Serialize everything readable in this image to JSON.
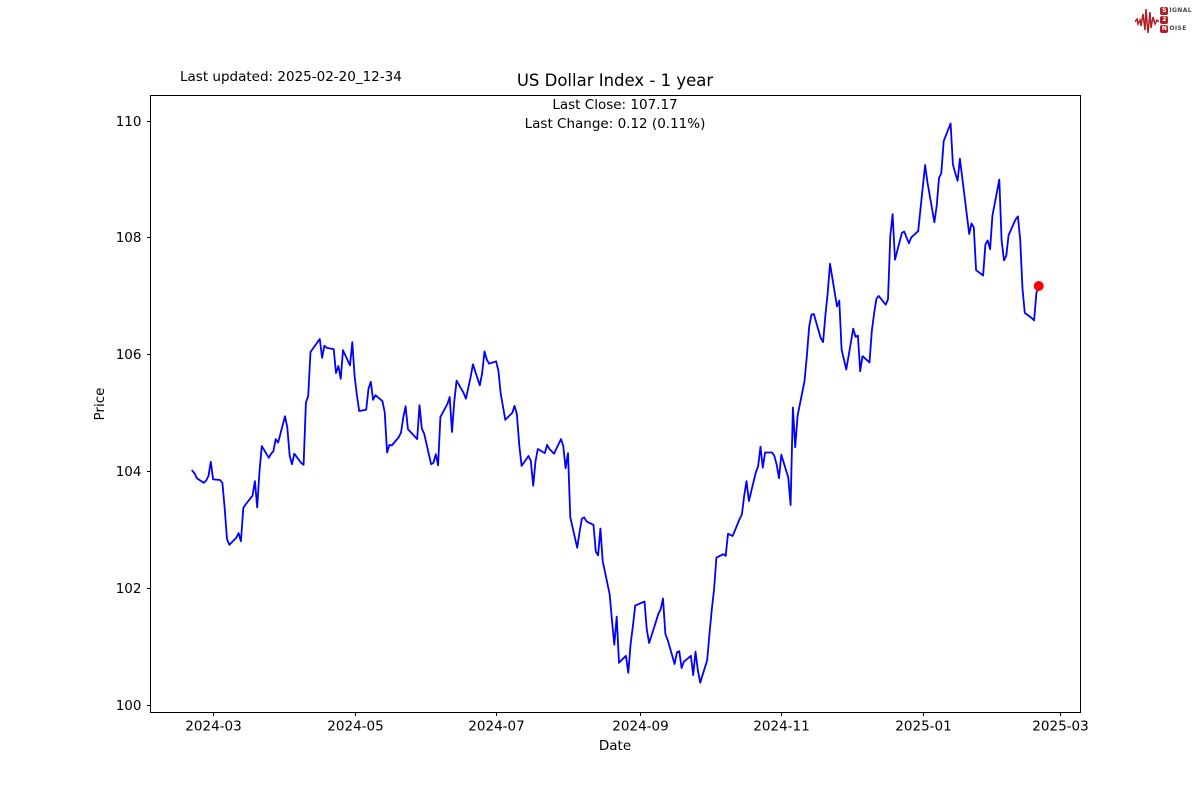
{
  "header": {
    "last_updated": "Last updated: 2025-02-20_12-34"
  },
  "logo": {
    "word1_initial": "S",
    "word1_rest": "IGNAL",
    "word2": "2",
    "word3_initial": "N",
    "word3_rest": "OISE",
    "accent_color": "#b01f24",
    "text_color": "#4a4a4a"
  },
  "chart_data": {
    "type": "line",
    "title": "US Dollar Index - 1 year",
    "annotations": [
      "Last Close: 107.17",
      "Last Change: 0.12 (0.11%)"
    ],
    "xlabel": "Date",
    "ylabel": "Price",
    "line_color": "#0000ff",
    "marker_color": "#ff0000",
    "axis_color": "#000000",
    "grid": false,
    "ylim": [
      99.87,
      110.43
    ],
    "xlim": [
      "2024-02-03",
      "2025-03-10"
    ],
    "y_ticks": [
      100,
      102,
      104,
      106,
      108,
      110
    ],
    "x_ticks": [
      {
        "label": "2024-03",
        "date": "2024-03-01"
      },
      {
        "label": "2024-05",
        "date": "2024-05-01"
      },
      {
        "label": "2024-07",
        "date": "2024-07-01"
      },
      {
        "label": "2024-09",
        "date": "2024-09-01"
      },
      {
        "label": "2024-11",
        "date": "2024-11-01"
      },
      {
        "label": "2025-01",
        "date": "2025-01-01"
      },
      {
        "label": "2025-03",
        "date": "2025-03-01"
      }
    ],
    "last_point": {
      "date": "2025-02-20",
      "value": 107.17
    },
    "series": [
      {
        "name": "US Dollar Index",
        "dates": [
          "2024-02-21",
          "2024-02-22",
          "2024-02-23",
          "2024-02-26",
          "2024-02-27",
          "2024-02-28",
          "2024-02-29",
          "2024-03-01",
          "2024-03-04",
          "2024-03-05",
          "2024-03-06",
          "2024-03-07",
          "2024-03-08",
          "2024-03-11",
          "2024-03-12",
          "2024-03-13",
          "2024-03-14",
          "2024-03-15",
          "2024-03-18",
          "2024-03-19",
          "2024-03-20",
          "2024-03-21",
          "2024-03-22",
          "2024-03-25",
          "2024-03-26",
          "2024-03-27",
          "2024-03-28",
          "2024-03-29",
          "2024-04-01",
          "2024-04-02",
          "2024-04-03",
          "2024-04-04",
          "2024-04-05",
          "2024-04-08",
          "2024-04-09",
          "2024-04-10",
          "2024-04-11",
          "2024-04-12",
          "2024-04-15",
          "2024-04-16",
          "2024-04-17",
          "2024-04-18",
          "2024-04-19",
          "2024-04-22",
          "2024-04-23",
          "2024-04-24",
          "2024-04-25",
          "2024-04-26",
          "2024-04-29",
          "2024-04-30",
          "2024-05-01",
          "2024-05-02",
          "2024-05-03",
          "2024-05-06",
          "2024-05-07",
          "2024-05-08",
          "2024-05-09",
          "2024-05-10",
          "2024-05-13",
          "2024-05-14",
          "2024-05-15",
          "2024-05-16",
          "2024-05-17",
          "2024-05-20",
          "2024-05-21",
          "2024-05-22",
          "2024-05-23",
          "2024-05-24",
          "2024-05-28",
          "2024-05-29",
          "2024-05-30",
          "2024-05-31",
          "2024-06-03",
          "2024-06-04",
          "2024-06-05",
          "2024-06-06",
          "2024-06-07",
          "2024-06-10",
          "2024-06-11",
          "2024-06-12",
          "2024-06-13",
          "2024-06-14",
          "2024-06-17",
          "2024-06-18",
          "2024-06-20",
          "2024-06-21",
          "2024-06-24",
          "2024-06-25",
          "2024-06-26",
          "2024-06-27",
          "2024-06-28",
          "2024-07-01",
          "2024-07-02",
          "2024-07-03",
          "2024-07-05",
          "2024-07-08",
          "2024-07-09",
          "2024-07-10",
          "2024-07-11",
          "2024-07-12",
          "2024-07-15",
          "2024-07-16",
          "2024-07-17",
          "2024-07-18",
          "2024-07-19",
          "2024-07-22",
          "2024-07-23",
          "2024-07-24",
          "2024-07-25",
          "2024-07-26",
          "2024-07-29",
          "2024-07-30",
          "2024-07-31",
          "2024-08-01",
          "2024-08-02",
          "2024-08-05",
          "2024-08-06",
          "2024-08-07",
          "2024-08-08",
          "2024-08-09",
          "2024-08-12",
          "2024-08-13",
          "2024-08-14",
          "2024-08-15",
          "2024-08-16",
          "2024-08-19",
          "2024-08-20",
          "2024-08-21",
          "2024-08-22",
          "2024-08-23",
          "2024-08-26",
          "2024-08-27",
          "2024-08-28",
          "2024-08-29",
          "2024-08-30",
          "2024-09-03",
          "2024-09-04",
          "2024-09-05",
          "2024-09-06",
          "2024-09-09",
          "2024-09-10",
          "2024-09-11",
          "2024-09-12",
          "2024-09-13",
          "2024-09-16",
          "2024-09-17",
          "2024-09-18",
          "2024-09-19",
          "2024-09-20",
          "2024-09-23",
          "2024-09-24",
          "2024-09-25",
          "2024-09-26",
          "2024-09-27",
          "2024-09-30",
          "2024-10-01",
          "2024-10-02",
          "2024-10-03",
          "2024-10-04",
          "2024-10-07",
          "2024-10-08",
          "2024-10-09",
          "2024-10-10",
          "2024-10-11",
          "2024-10-14",
          "2024-10-15",
          "2024-10-16",
          "2024-10-17",
          "2024-10-18",
          "2024-10-21",
          "2024-10-22",
          "2024-10-23",
          "2024-10-24",
          "2024-10-25",
          "2024-10-28",
          "2024-10-29",
          "2024-10-30",
          "2024-10-31",
          "2024-11-01",
          "2024-11-04",
          "2024-11-05",
          "2024-11-06",
          "2024-11-07",
          "2024-11-08",
          "2024-11-11",
          "2024-11-12",
          "2024-11-13",
          "2024-11-14",
          "2024-11-15",
          "2024-11-18",
          "2024-11-19",
          "2024-11-20",
          "2024-11-21",
          "2024-11-22",
          "2024-11-25",
          "2024-11-26",
          "2024-11-27",
          "2024-11-29",
          "2024-12-02",
          "2024-12-03",
          "2024-12-04",
          "2024-12-05",
          "2024-12-06",
          "2024-12-09",
          "2024-12-10",
          "2024-12-11",
          "2024-12-12",
          "2024-12-13",
          "2024-12-16",
          "2024-12-17",
          "2024-12-18",
          "2024-12-19",
          "2024-12-20",
          "2024-12-23",
          "2024-12-24",
          "2024-12-26",
          "2024-12-27",
          "2024-12-30",
          "2024-12-31",
          "2025-01-02",
          "2025-01-03",
          "2025-01-06",
          "2025-01-07",
          "2025-01-08",
          "2025-01-09",
          "2025-01-10",
          "2025-01-13",
          "2025-01-14",
          "2025-01-15",
          "2025-01-16",
          "2025-01-17",
          "2025-01-21",
          "2025-01-22",
          "2025-01-23",
          "2025-01-24",
          "2025-01-27",
          "2025-01-28",
          "2025-01-29",
          "2025-01-30",
          "2025-01-31",
          "2025-02-03",
          "2025-02-04",
          "2025-02-05",
          "2025-02-06",
          "2025-02-07",
          "2025-02-10",
          "2025-02-11",
          "2025-02-12",
          "2025-02-13",
          "2025-02-14",
          "2025-02-17",
          "2025-02-18",
          "2025-02-19",
          "2025-02-20"
        ],
        "values": [
          104.01,
          103.96,
          103.88,
          103.8,
          103.84,
          103.92,
          104.16,
          103.86,
          103.85,
          103.8,
          103.36,
          102.84,
          102.74,
          102.86,
          102.94,
          102.8,
          103.37,
          103.43,
          103.58,
          103.83,
          103.38,
          104.0,
          104.43,
          104.23,
          104.3,
          104.34,
          104.55,
          104.49,
          104.94,
          104.75,
          104.26,
          104.12,
          104.3,
          104.14,
          104.11,
          105.17,
          105.29,
          106.04,
          106.21,
          106.26,
          105.94,
          106.15,
          106.11,
          106.09,
          105.68,
          105.8,
          105.58,
          106.07,
          105.81,
          106.21,
          105.63,
          105.3,
          105.03,
          105.05,
          105.41,
          105.53,
          105.22,
          105.3,
          105.2,
          105.01,
          104.32,
          104.45,
          104.44,
          104.58,
          104.66,
          104.92,
          105.11,
          104.72,
          104.55,
          105.13,
          104.73,
          104.64,
          104.12,
          104.14,
          104.29,
          104.1,
          104.93,
          105.15,
          105.27,
          104.67,
          105.2,
          105.55,
          105.34,
          105.24,
          105.6,
          105.83,
          105.47,
          105.67,
          106.05,
          105.91,
          105.84,
          105.88,
          105.72,
          105.33,
          104.88,
          105.0,
          105.12,
          104.97,
          104.44,
          104.09,
          104.26,
          104.18,
          103.75,
          104.17,
          104.38,
          104.31,
          104.45,
          104.38,
          104.34,
          104.3,
          104.55,
          104.43,
          104.05,
          104.31,
          103.21,
          102.69,
          102.96,
          103.19,
          103.21,
          103.14,
          103.08,
          102.62,
          102.56,
          103.02,
          102.46,
          101.89,
          101.44,
          101.03,
          101.51,
          100.72,
          100.84,
          100.55,
          101.04,
          101.35,
          101.7,
          101.77,
          101.29,
          101.06,
          101.18,
          101.56,
          101.64,
          101.82,
          101.21,
          101.11,
          100.7,
          100.9,
          100.92,
          100.63,
          100.74,
          100.84,
          100.51,
          100.91,
          100.6,
          100.38,
          100.76,
          101.2,
          101.62,
          101.98,
          102.52,
          102.58,
          102.55,
          102.93,
          102.91,
          102.89,
          103.18,
          103.26,
          103.58,
          103.83,
          103.49,
          103.98,
          104.08,
          104.42,
          104.06,
          104.32,
          104.32,
          104.26,
          104.11,
          103.88,
          104.28,
          103.89,
          103.42,
          105.09,
          104.41,
          104.95,
          105.54,
          105.96,
          106.48,
          106.68,
          106.69,
          106.28,
          106.21,
          106.67,
          107.05,
          107.55,
          106.82,
          106.92,
          106.08,
          105.74,
          106.44,
          106.3,
          106.32,
          105.71,
          105.97,
          105.86,
          106.4,
          106.7,
          106.95,
          107.0,
          106.85,
          106.94,
          108.02,
          108.4,
          107.62,
          108.08,
          108.1,
          107.9,
          108.0,
          108.11,
          108.49,
          109.24,
          108.95,
          108.26,
          108.54,
          109.02,
          109.1,
          109.65,
          109.95,
          109.25,
          109.1,
          108.97,
          109.35,
          108.06,
          108.24,
          108.17,
          107.44,
          107.35,
          107.88,
          107.95,
          107.8,
          108.37,
          108.99,
          107.95,
          107.61,
          107.69,
          108.04,
          108.31,
          108.36,
          107.96,
          107.12,
          106.71,
          106.62,
          106.58,
          107.05,
          107.17
        ]
      }
    ]
  }
}
